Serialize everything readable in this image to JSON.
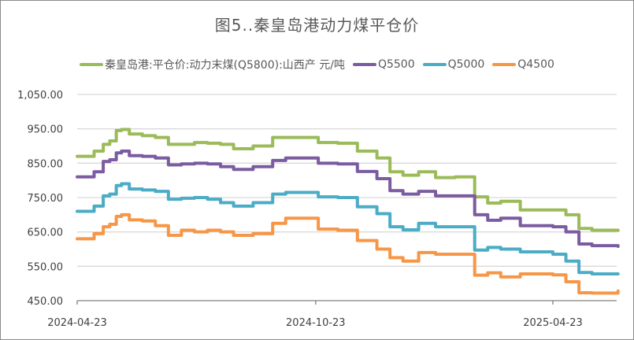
{
  "chart_data": {
    "type": "line",
    "title": "图5..秦皇岛港动力煤平仓价",
    "legend_position": "top",
    "grid": true,
    "ylim": [
      450,
      1050
    ],
    "yticks": [
      "1,050.00",
      "950.00",
      "850.00",
      "750.00",
      "650.00",
      "550.00",
      "450.00"
    ],
    "ytick_values": [
      1050,
      950,
      850,
      750,
      650,
      550,
      450
    ],
    "xticks": [
      "2024-04-23",
      "2024-10-23",
      "2025-04-23"
    ],
    "x": [
      "2024-04-23",
      "2024-05-06",
      "2024-05-13",
      "2024-05-18",
      "2024-05-23",
      "2024-05-27",
      "2024-06-02",
      "2024-06-12",
      "2024-06-22",
      "2024-07-02",
      "2024-07-12",
      "2024-07-22",
      "2024-08-01",
      "2024-08-11",
      "2024-08-21",
      "2024-09-05",
      "2024-09-20",
      "2024-09-30",
      "2024-10-10",
      "2024-10-25",
      "2024-11-09",
      "2024-11-24",
      "2024-12-09",
      "2024-12-19",
      "2024-12-29",
      "2025-01-10",
      "2025-01-23",
      "2025-02-07",
      "2025-02-22",
      "2025-03-04",
      "2025-03-14",
      "2025-03-29",
      "2025-04-13",
      "2025-04-23",
      "2025-05-03",
      "2025-05-13",
      "2025-05-23",
      "2025-06-12"
    ],
    "series": [
      {
        "name": "秦皇岛港:平仓价:动力末煤(Q5800):山西产 元/吨",
        "color": "#9bbb59",
        "values": [
          870,
          885,
          905,
          915,
          945,
          948,
          935,
          930,
          925,
          905,
          905,
          910,
          908,
          905,
          892,
          900,
          925,
          925,
          925,
          910,
          908,
          885,
          865,
          825,
          815,
          825,
          808,
          810,
          752,
          734,
          739,
          714,
          714,
          714,
          700,
          660,
          655,
          654
        ]
      },
      {
        "name": "Q5500",
        "color": "#7b5ca0",
        "values": [
          810,
          825,
          855,
          860,
          880,
          885,
          872,
          870,
          865,
          845,
          848,
          850,
          848,
          840,
          832,
          840,
          858,
          865,
          865,
          850,
          848,
          826,
          805,
          770,
          760,
          768,
          755,
          755,
          700,
          684,
          690,
          668,
          668,
          665,
          650,
          615,
          610,
          608
        ]
      },
      {
        "name": "Q5000",
        "color": "#4bacc6",
        "values": [
          710,
          725,
          755,
          760,
          785,
          790,
          775,
          772,
          768,
          745,
          748,
          750,
          745,
          735,
          725,
          735,
          760,
          765,
          765,
          752,
          750,
          723,
          703,
          665,
          656,
          675,
          665,
          665,
          597,
          605,
          600,
          592,
          592,
          585,
          565,
          532,
          528,
          528
        ]
      },
      {
        "name": "Q4500",
        "color": "#f79646",
        "values": [
          630,
          645,
          665,
          672,
          695,
          700,
          685,
          682,
          668,
          640,
          655,
          650,
          655,
          650,
          640,
          645,
          675,
          690,
          690,
          658,
          655,
          625,
          600,
          575,
          565,
          590,
          585,
          585,
          524,
          531,
          519,
          528,
          528,
          525,
          505,
          473,
          472,
          478
        ]
      }
    ]
  }
}
